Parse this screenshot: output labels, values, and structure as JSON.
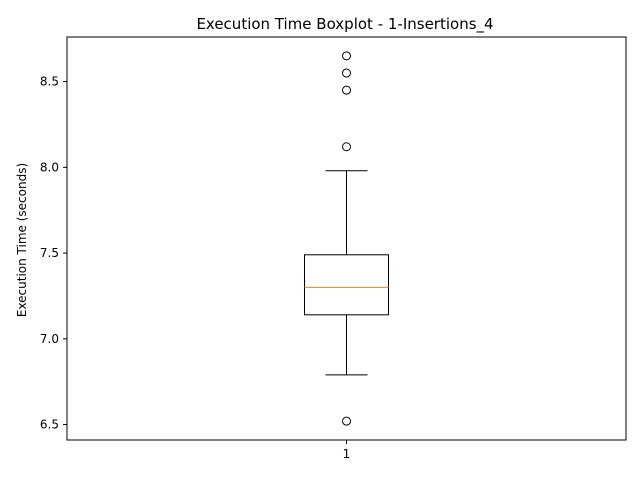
{
  "chart_data": {
    "type": "boxplot",
    "title": "Execution Time Boxplot - 1-Insertions_4",
    "xlabel": "",
    "ylabel": "Execution Time (seconds)",
    "categories": [
      "1"
    ],
    "ylim": [
      6.41,
      8.76
    ],
    "yticks": [
      6.5,
      7.0,
      7.5,
      8.0,
      8.5
    ],
    "ytick_labels": [
      "6.5",
      "7.0",
      "7.5",
      "8.0",
      "8.5"
    ],
    "boxes": [
      {
        "label": "1",
        "whisker_low": 6.79,
        "q1": 7.14,
        "median": 7.3,
        "q3": 7.49,
        "whisker_high": 7.98,
        "outliers": [
          6.52,
          8.12,
          8.45,
          8.55,
          8.65
        ]
      }
    ],
    "grid": false,
    "colors": {
      "box": "#000000",
      "median": "#ff7f0e",
      "outlier": "#000000",
      "axes": "#000000"
    }
  }
}
